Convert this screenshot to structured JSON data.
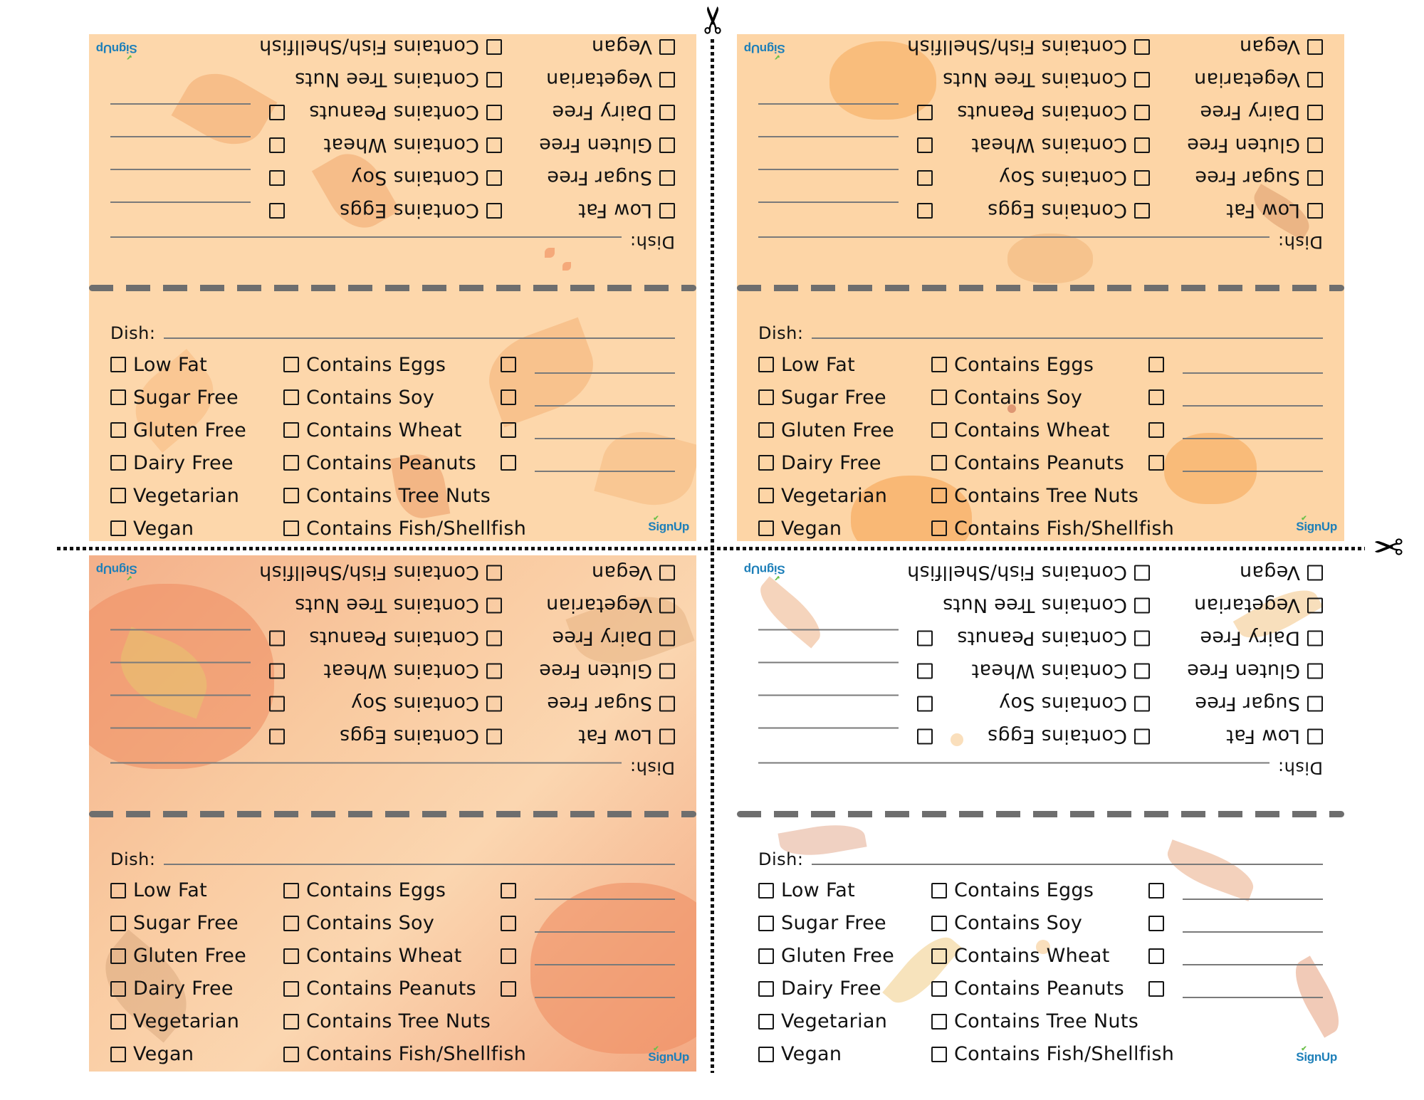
{
  "page": {
    "description": "Printable potluck dish allergy/diet label cards, 4 cards with fold line",
    "cut_marks": {
      "top_icon": "scissors-icon",
      "right_icon": "scissors-icon"
    }
  },
  "card_template": {
    "dish_label": "Dish:",
    "column1": [
      "Low Fat",
      "Sugar Free",
      "Gluten Free",
      "Dairy Free",
      "Vegetarian",
      "Vegan"
    ],
    "column2": [
      "Contains Eggs",
      "Contains Soy",
      "Contains Wheat",
      "Contains Peanuts",
      "Contains Tree Nuts",
      "Contains Fish/Shellfish"
    ],
    "column3_blank_count": 4,
    "logo": "SignUp"
  },
  "cards": [
    {
      "id": "card-1",
      "theme": "maple-leaves",
      "background": "#fdd7ab"
    },
    {
      "id": "card-2",
      "theme": "pumpkins-pies",
      "background": "#fdd5a6"
    },
    {
      "id": "card-3",
      "theme": "pumpkins-oak-leaves",
      "background": "#f9caa0"
    },
    {
      "id": "card-4",
      "theme": "watercolor-leaves-white",
      "background": "#ffffff"
    }
  ],
  "colors": {
    "text": "#111111",
    "rule_line": "#7a7a7a",
    "fold_dash": "#6e6e6e",
    "logo_blue": "#1d7fb9",
    "logo_check": "#6cc04a"
  }
}
